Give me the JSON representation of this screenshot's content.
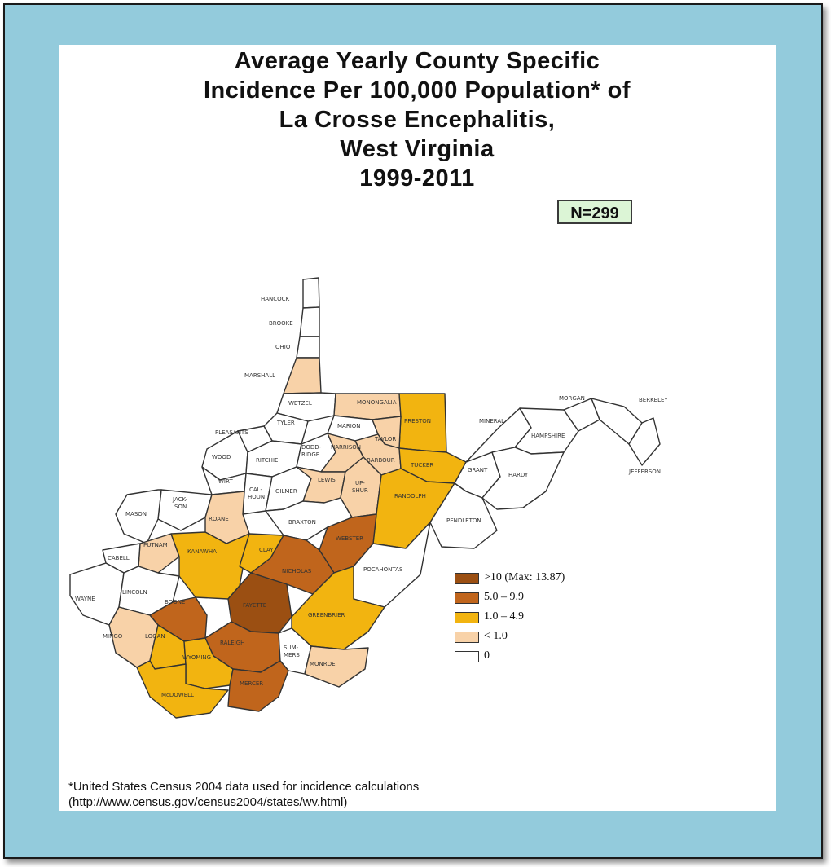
{
  "title_lines": [
    "Average Yearly County Specific",
    "Incidence Per 100,000 Population* of",
    "La Crosse Encephalitis,",
    "West Virginia",
    "1999-2011"
  ],
  "sample_badge": "N=299",
  "legend": {
    "items": [
      {
        "label": ">10 (Max:  13.87)",
        "color": "#9b4f12"
      },
      {
        "label": "5.0 – 9.9",
        "color": "#c0651c"
      },
      {
        "label": "1.0 – 4.9",
        "color": "#f2b410"
      },
      {
        "label": "< 1.0",
        "color": "#f8d2a8"
      },
      {
        "label": "0",
        "color": "#ffffff"
      }
    ]
  },
  "footnote": {
    "line1": "*United States Census 2004 data used for incidence calculations",
    "line2": "(http://www.census.gov/census2004/states/wv.html)"
  },
  "counties": [
    {
      "name": "HANCOCK",
      "category": "0"
    },
    {
      "name": "BROOKE",
      "category": "0"
    },
    {
      "name": "OHIO",
      "category": "0"
    },
    {
      "name": "MARSHALL",
      "category": "<1.0"
    },
    {
      "name": "WETZEL",
      "category": "0"
    },
    {
      "name": "MONONGALIA",
      "category": "<1.0"
    },
    {
      "name": "PRESTON",
      "category": "1.0-4.9"
    },
    {
      "name": "MARION",
      "category": "0"
    },
    {
      "name": "TYLER",
      "category": "0"
    },
    {
      "name": "PLEASANTS",
      "category": "0"
    },
    {
      "name": "WOOD",
      "category": "0"
    },
    {
      "name": "RITCHIE",
      "category": "0"
    },
    {
      "name": "DODDRIDGE",
      "category": "0"
    },
    {
      "name": "HARRISON",
      "category": "<1.0"
    },
    {
      "name": "TAYLOR",
      "category": "<1.0"
    },
    {
      "name": "BARBOUR",
      "category": "<1.0"
    },
    {
      "name": "TUCKER",
      "category": "1.0-4.9"
    },
    {
      "name": "WIRT",
      "category": "0"
    },
    {
      "name": "JACKSON",
      "category": "0"
    },
    {
      "name": "CALHOUN",
      "category": "0"
    },
    {
      "name": "GILMER",
      "category": "0"
    },
    {
      "name": "LEWIS",
      "category": "<1.0"
    },
    {
      "name": "UPSHUR",
      "category": "<1.0"
    },
    {
      "name": "RANDOLPH",
      "category": "1.0-4.9"
    },
    {
      "name": "MASON",
      "category": "0"
    },
    {
      "name": "ROANE",
      "category": "<1.0"
    },
    {
      "name": "BRAXTON",
      "category": "0"
    },
    {
      "name": "WEBSTER",
      "category": "5.0-9.9"
    },
    {
      "name": "PUTNAM",
      "category": "<1.0"
    },
    {
      "name": "CABELL",
      "category": "0"
    },
    {
      "name": "KANAWHA",
      "category": "1.0-4.9"
    },
    {
      "name": "CLAY",
      "category": "1.0-4.9"
    },
    {
      "name": "NICHOLAS",
      "category": "5.0-9.9"
    },
    {
      "name": "POCAHONTAS",
      "category": "0"
    },
    {
      "name": "WAYNE",
      "category": "0"
    },
    {
      "name": "LINCOLN",
      "category": "0"
    },
    {
      "name": "BOONE",
      "category": "5.0-9.9"
    },
    {
      "name": "FAYETTE",
      "category": ">10"
    },
    {
      "name": "GREENBRIER",
      "category": "1.0-4.9"
    },
    {
      "name": "MINGO",
      "category": "<1.0"
    },
    {
      "name": "LOGAN",
      "category": "1.0-4.9"
    },
    {
      "name": "RALEIGH",
      "category": "5.0-9.9"
    },
    {
      "name": "WYOMING",
      "category": "1.0-4.9"
    },
    {
      "name": "SUMMERS",
      "category": "0"
    },
    {
      "name": "MONROE",
      "category": "<1.0"
    },
    {
      "name": "MCDOWELL",
      "category": "1.0-4.9"
    },
    {
      "name": "MERCER",
      "category": "5.0-9.9"
    },
    {
      "name": "GRANT",
      "category": "0"
    },
    {
      "name": "PENDLETON",
      "category": "0"
    },
    {
      "name": "MINERAL",
      "category": "0"
    },
    {
      "name": "HAMPSHIRE",
      "category": "0"
    },
    {
      "name": "HARDY",
      "category": "0"
    },
    {
      "name": "MORGAN",
      "category": "0"
    },
    {
      "name": "BERKELEY",
      "category": "0"
    },
    {
      "name": "JEFFERSON",
      "category": "0"
    }
  ],
  "map_labels": {
    "hancock": "HANCOCK",
    "brooke": "BROOKE",
    "ohio": "OHIO",
    "marshall": "MARSHALL",
    "wetzel": "WETZEL",
    "monongalia": "MONONGALIA",
    "preston": "PRESTON",
    "marion": "MARION",
    "tyler": "TYLER",
    "pleasants": "PLEASANTS",
    "wood": "WOOD",
    "ritchie": "RITCHIE",
    "doddridge_1": "DODD-",
    "doddridge_2": "RIDGE",
    "harrison": "HARRISON",
    "taylor": "TAYLOR",
    "barbour": "BARBOUR",
    "tucker": "TUCKER",
    "wirt": "WIRT",
    "jackson_1": "JACK-",
    "jackson_2": "SON",
    "calhoun_1": "CAL-",
    "calhoun_2": "HOUN",
    "gilmer": "GILMER",
    "lewis": "LEWIS",
    "upshur_1": "UP-",
    "upshur_2": "SHUR",
    "randolph": "RANDOLPH",
    "mason": "MASON",
    "roane": "ROANE",
    "braxton": "BRAXTON",
    "webster": "WEBSTER",
    "putnam": "PUTNAM",
    "cabell": "CABELL",
    "kanawha": "KANAWHA",
    "clay": "CLAY",
    "nicholas": "NICHOLAS",
    "pocahontas": "POCAHONTAS",
    "wayne": "WAYNE",
    "lincoln": "LINCOLN",
    "boone": "BOONE",
    "fayette": "FAYETTE",
    "greenbrier": "GREENBRIER",
    "mingo": "MINGO",
    "logan": "LOGAN",
    "raleigh": "RALEIGH",
    "wyoming": "WYOMING",
    "summers_1": "SUM-",
    "summers_2": "MERS",
    "monroe": "MONROE",
    "mcdowell": "McDOWELL",
    "mercer": "MERCER",
    "grant": "GRANT",
    "pendleton": "PENDLETON",
    "mineral": "MINERAL",
    "hampshire": "HAMPSHIRE",
    "hardy": "HARDY",
    "morgan": "MORGAN",
    "berkeley": "BERKELEY",
    "jefferson": "JEFFERSON"
  }
}
